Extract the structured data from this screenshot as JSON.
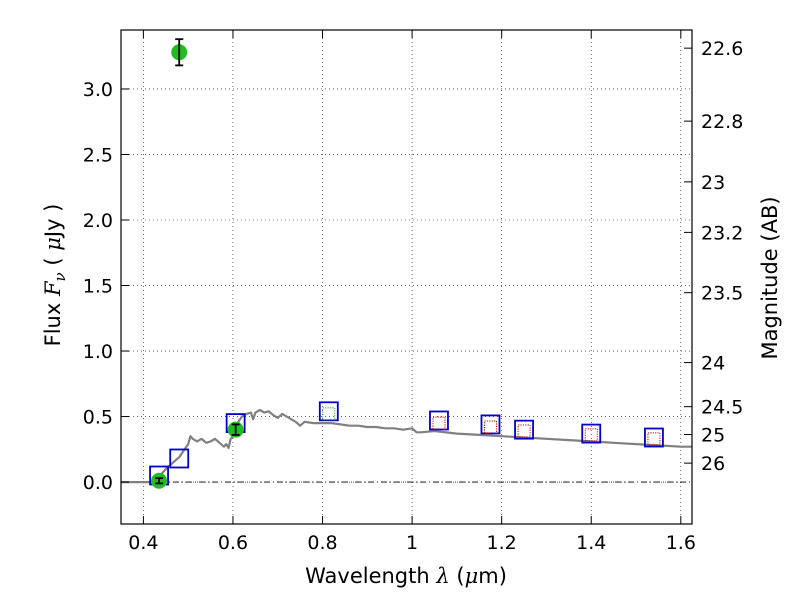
{
  "chart_data": {
    "type": "scatter",
    "title": "",
    "xlabel": "Wavelength",
    "xlabel_symbol": "λ",
    "xlabel_unit_open": "(",
    "xlabel_unit_mu": "μ",
    "xlabel_unit_rest": "m)",
    "ylabel": "Flux",
    "ylabel_symbol": "F",
    "ylabel_subscript": "ν",
    "ylabel_unit_open": "(",
    "ylabel_unit_mu": "μ",
    "ylabel_unit_rest": "Jy",
    "ylabel_unit_close": ")",
    "y2label": "Magnitude (AB)",
    "xlim": [
      0.35,
      1.625
    ],
    "ylim": [
      -0.32,
      3.45
    ],
    "grid": true,
    "x_ticks": [
      0.4,
      0.6,
      0.8,
      1.0,
      1.2,
      1.4,
      1.6
    ],
    "x_tick_labels": [
      "0.4",
      "0.6",
      "0.8",
      "1",
      "1.2",
      "1.4",
      "1.6"
    ],
    "y_ticks": [
      0.0,
      0.5,
      1.0,
      1.5,
      2.0,
      2.5,
      3.0
    ],
    "y_tick_labels": [
      "0.0",
      "0.5",
      "1.0",
      "1.5",
      "2.0",
      "2.5",
      "3.0"
    ],
    "y2_ticks": [
      {
        "mag": 22.6,
        "label": "22.6"
      },
      {
        "mag": 22.8,
        "label": "22.8"
      },
      {
        "mag": 23.0,
        "label": "23"
      },
      {
        "mag": 23.2,
        "label": "23.2"
      },
      {
        "mag": 23.5,
        "label": "23.5"
      },
      {
        "mag": 24.0,
        "label": "24"
      },
      {
        "mag": 24.5,
        "label": "24.5"
      },
      {
        "mag": 25.0,
        "label": "25"
      },
      {
        "mag": 26.0,
        "label": "26"
      }
    ],
    "zero_line": 0.0,
    "colors": {
      "model": "#808080",
      "observed": "#22bb22",
      "model_box": "#0000cc",
      "ir_point": "#cc0000",
      "nir_point": "#22aa22",
      "errorbar": "#000000"
    },
    "series": [
      {
        "name": "observed flux",
        "kind": "errorbar-points",
        "x": [
          0.435,
          0.48,
          0.606
        ],
        "y": [
          0.01,
          3.28,
          0.4
        ],
        "yerr": [
          0.02,
          0.1,
          0.04
        ]
      },
      {
        "name": "model photometry",
        "kind": "open-squares",
        "x": [
          0.435,
          0.48,
          0.606,
          0.814,
          1.06,
          1.175,
          1.25,
          1.4,
          1.54
        ],
        "y": [
          0.05,
          0.18,
          0.45,
          0.54,
          0.47,
          0.44,
          0.4,
          0.37,
          0.34
        ]
      },
      {
        "name": "near-ir photometry",
        "kind": "small-squares",
        "x": [
          0.814,
          1.06,
          1.175,
          1.25,
          1.4,
          1.54
        ],
        "y": [
          0.52,
          0.45,
          0.42,
          0.39,
          0.36,
          0.33
        ],
        "colors": [
          "#22aa22",
          "#cc0000",
          "#cc0000",
          "#cc0000",
          "#cc0000",
          "#cc0000"
        ]
      },
      {
        "name": "best-fit template",
        "kind": "line",
        "x": [
          0.35,
          0.42,
          0.43,
          0.44,
          0.45,
          0.46,
          0.47,
          0.48,
          0.49,
          0.5,
          0.505,
          0.51,
          0.52,
          0.53,
          0.54,
          0.55,
          0.56,
          0.57,
          0.58,
          0.585,
          0.59,
          0.595,
          0.6,
          0.61,
          0.62,
          0.63,
          0.64,
          0.645,
          0.65,
          0.655,
          0.66,
          0.67,
          0.68,
          0.69,
          0.7,
          0.71,
          0.72,
          0.73,
          0.74,
          0.75,
          0.76,
          0.78,
          0.8,
          0.82,
          0.84,
          0.86,
          0.88,
          0.9,
          0.92,
          0.94,
          0.96,
          0.98,
          1.0,
          1.01,
          1.02,
          1.05,
          1.1,
          1.15,
          1.2,
          1.25,
          1.3,
          1.35,
          1.4,
          1.45,
          1.5,
          1.55,
          1.6,
          1.625
        ],
        "y": [
          0.0,
          0.0,
          0.03,
          0.06,
          0.1,
          0.13,
          0.16,
          0.19,
          0.24,
          0.29,
          0.35,
          0.33,
          0.31,
          0.33,
          0.3,
          0.31,
          0.33,
          0.3,
          0.27,
          0.29,
          0.26,
          0.33,
          0.35,
          0.45,
          0.5,
          0.52,
          0.53,
          0.48,
          0.53,
          0.54,
          0.55,
          0.53,
          0.54,
          0.51,
          0.49,
          0.52,
          0.5,
          0.48,
          0.46,
          0.43,
          0.46,
          0.45,
          0.45,
          0.45,
          0.44,
          0.43,
          0.43,
          0.42,
          0.42,
          0.41,
          0.41,
          0.4,
          0.41,
          0.38,
          0.38,
          0.39,
          0.37,
          0.36,
          0.35,
          0.34,
          0.33,
          0.32,
          0.31,
          0.3,
          0.29,
          0.28,
          0.27,
          0.27
        ]
      }
    ]
  }
}
